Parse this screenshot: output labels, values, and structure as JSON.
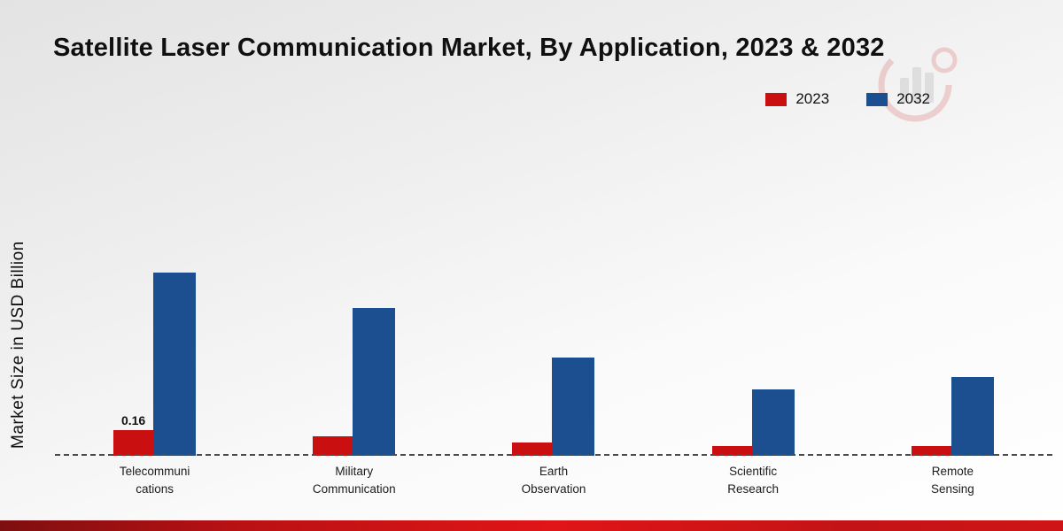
{
  "title": "Satellite Laser Communication Market, By Application, 2023 & 2032",
  "ylabel": "Market Size in USD Billion",
  "legend": {
    "items": [
      {
        "label": "2023",
        "color": "#c90f10"
      },
      {
        "label": "2032",
        "color": "#1b4f8f"
      }
    ]
  },
  "chart_data": {
    "type": "bar",
    "title": "Satellite Laser Communication Market, By Application, 2023 & 2032",
    "xlabel": "",
    "ylabel": "Market Size in USD Billion",
    "categories": [
      "Telecommunications",
      "Military Communication",
      "Earth Observation",
      "Scientific Research",
      "Remote Sensing"
    ],
    "category_display_lines": [
      [
        "Telecommuni",
        "cations"
      ],
      [
        "Military",
        "Communication"
      ],
      [
        "Earth",
        "Observation"
      ],
      [
        "Scientific",
        "Research"
      ],
      [
        "Remote",
        "Sensing"
      ]
    ],
    "series": [
      {
        "name": "2023",
        "color": "#c90f10",
        "values": [
          0.16,
          0.12,
          0.08,
          0.06,
          0.06
        ]
      },
      {
        "name": "2032",
        "color": "#1b4f8f",
        "values": [
          1.14,
          0.92,
          0.61,
          0.41,
          0.49
        ]
      }
    ],
    "annotations": [
      {
        "series": "2023",
        "category_index": 0,
        "text": "0.16"
      }
    ],
    "ylim": [
      0,
      1.25
    ],
    "grid": false,
    "axis_style": "dashed-baseline-only",
    "legend_position": "top-right"
  }
}
